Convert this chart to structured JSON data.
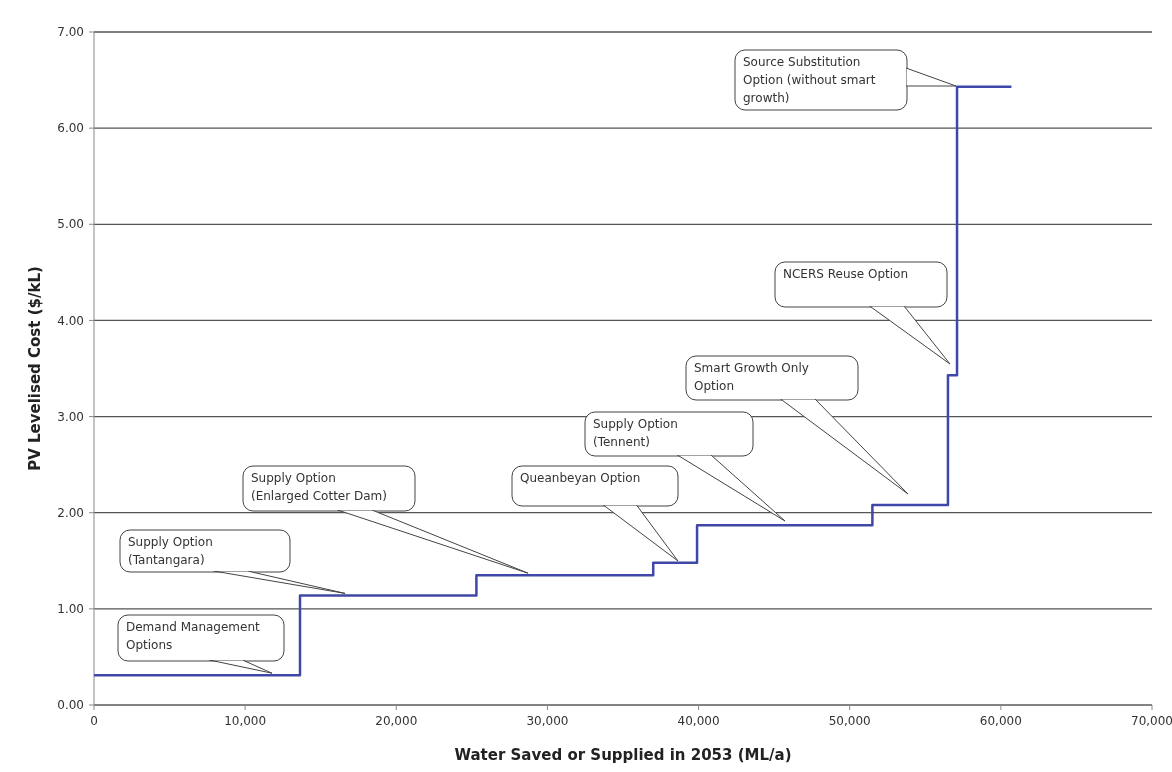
{
  "chart_data": {
    "type": "step",
    "xlabel": "Water Saved or Supplied in 2053 (ML/a)",
    "ylabel": "PV Levelised Cost ($/kL)",
    "x": [
      0,
      13630,
      25300,
      37000,
      39900,
      51500,
      56500,
      57100,
      60700
    ],
    "series": [
      {
        "color": "#3f48a8",
        "values": [
          0.31,
          1.14,
          1.35,
          1.48,
          1.87,
          2.08,
          3.43,
          6.43,
          6.43
        ]
      }
    ],
    "xlim": [
      0,
      70000
    ],
    "xticks": [
      {
        "value": 0,
        "label": "0"
      },
      {
        "value": 10000,
        "label": "10,000"
      },
      {
        "value": 20000,
        "label": "20,000"
      },
      {
        "value": 30000,
        "label": "30,000"
      },
      {
        "value": 40000,
        "label": "40,000"
      },
      {
        "value": 50000,
        "label": "50,000"
      },
      {
        "value": 60000,
        "label": "60,000"
      },
      {
        "value": 70000,
        "label": "70,000"
      }
    ],
    "ylim": [
      0,
      7
    ],
    "yticks": [
      {
        "value": 0,
        "label": "0.00"
      },
      {
        "value": 1,
        "label": "1.00"
      },
      {
        "value": 2,
        "label": "2.00"
      },
      {
        "value": 3,
        "label": "3.00"
      },
      {
        "value": 4,
        "label": "4.00"
      },
      {
        "value": 5,
        "label": "5.00"
      },
      {
        "value": 6,
        "label": "6.00"
      },
      {
        "value": 7,
        "label": "7.00"
      }
    ],
    "grid": "y",
    "marker": "none",
    "line_style": "solid",
    "annotations": [
      {
        "text": "Demand Management Options",
        "x": 11780,
        "y": 0.31
      },
      {
        "text": "Supply Option (Tantangara)",
        "x": 16610,
        "y": 1.14
      },
      {
        "text": "Supply Option (Enlarged Cotter Dam)",
        "x": 28720,
        "y": 1.35
      },
      "Queanbeyan Option",
      "Supply Option (Tennent)",
      "Smart Growth Only Option",
      "NCERS Reuse Option",
      "Source Substitution Option (without smart growth)"
    ]
  }
}
